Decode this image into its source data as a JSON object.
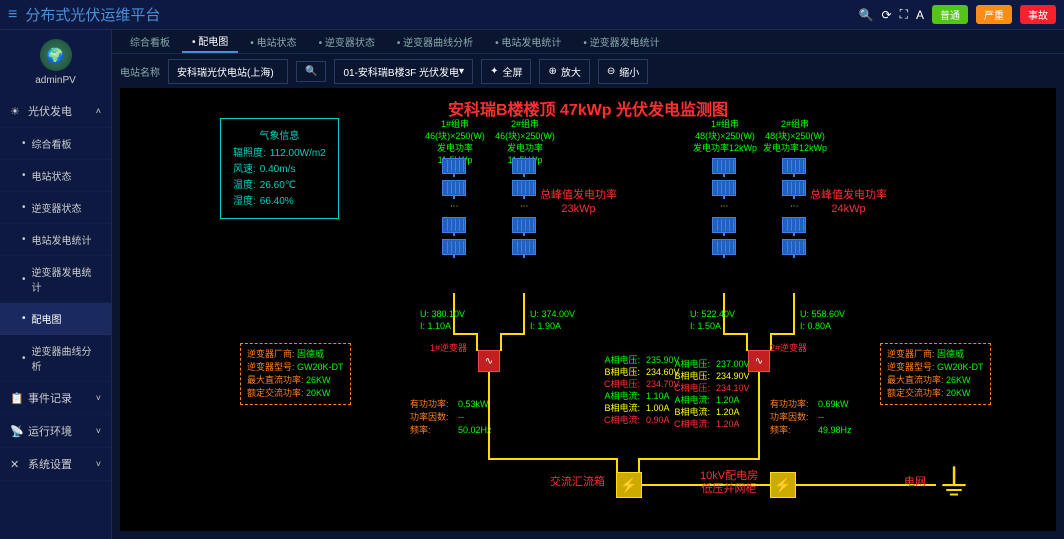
{
  "app": {
    "title": "分布式光伏运维平台",
    "user": "adminPV"
  },
  "topButtons": {
    "b1": "普通",
    "b2": "严重",
    "b3": "事故"
  },
  "sidebar": {
    "items": [
      {
        "icon": "☀",
        "label": "光伏发电",
        "arrow": "˄"
      },
      {
        "label": "综合看板"
      },
      {
        "label": "电站状态"
      },
      {
        "label": "逆变器状态"
      },
      {
        "label": "电站发电统计"
      },
      {
        "label": "逆变器发电统计"
      },
      {
        "label": "配电图"
      },
      {
        "label": "逆变器曲线分析"
      },
      {
        "icon": "📋",
        "label": "事件记录",
        "arrow": "˅"
      },
      {
        "icon": "📡",
        "label": "运行环境",
        "arrow": "˅"
      },
      {
        "icon": "✕",
        "label": "系统设置",
        "arrow": "˅"
      }
    ]
  },
  "tabs": [
    "综合看板",
    "配电图",
    "电站状态",
    "逆变器状态",
    "逆变器曲线分析",
    "电站发电统计",
    "逆变器发电统计"
  ],
  "toolbar": {
    "stationLabel": "电站名称",
    "station": "安科瑞光伏电站(上海)",
    "tree": "01-安科瑞B楼3F 光伏发电",
    "full": "全屏",
    "zoomIn": "放大",
    "zoomOut": "缩小"
  },
  "diagram": {
    "title": "安科瑞B楼楼顶 47kWp 光伏发电监测图",
    "weather": {
      "title": "气象信息",
      "rows": [
        [
          "辐照度:",
          "112.00W/m2"
        ],
        [
          "风速:",
          "0.40m/s"
        ],
        [
          "温度:",
          "26.60℃"
        ],
        [
          "湿度:",
          "66.40%"
        ]
      ]
    },
    "groups": [
      {
        "name": "1#组串",
        "spec": "46(块)×250(W)",
        "power": "发电功率11.5kWp"
      },
      {
        "name": "2#组串",
        "spec": "46(块)×250(W)",
        "power": "发电功率11.5kWp"
      },
      {
        "name": "1#组串",
        "spec": "48(块)×250(W)",
        "power": "发电功率12kWp"
      },
      {
        "name": "2#组串",
        "spec": "48(块)×250(W)",
        "power": "发电功率12kWp"
      }
    ],
    "peak1": {
      "l1": "总峰值发电功率",
      "l2": "23kWp"
    },
    "peak2": {
      "l1": "总峰值发电功率",
      "l2": "24kWp"
    },
    "ui": [
      {
        "u": "U: 380.10V",
        "i": "I: 1.10A"
      },
      {
        "u": "U: 374.00V",
        "i": "I: 1.90A"
      },
      {
        "u": "U: 522.40V",
        "i": "I: 1.50A"
      },
      {
        "u": "U: 558.60V",
        "i": "I: 0.80A"
      }
    ],
    "invTag1": "1#逆变器",
    "invTag2": "2#逆变器",
    "invBox": {
      "r1l": "逆变器厂商:",
      "r1v": "固德威",
      "r2l": "逆变器型号:",
      "r2v": "GW20K-DT",
      "r3l": "最大直流功率:",
      "r3v": "26KW",
      "r4l": "额定交流功率:",
      "r4v": "20KW"
    },
    "phase1": [
      [
        "A相电压:",
        "235.90V",
        "green"
      ],
      [
        "B相电压:",
        "234.60V",
        "yellow"
      ],
      [
        "C相电压:",
        "234.70V",
        "red"
      ],
      [
        "A相电流:",
        "1.10A",
        "green"
      ],
      [
        "B相电流:",
        "1.00A",
        "yellow"
      ],
      [
        "C相电流:",
        "0.90A",
        "red"
      ]
    ],
    "phase2": [
      [
        "A相电压:",
        "237.00V",
        "green"
      ],
      [
        "B相电压:",
        "234.90V",
        "yellow"
      ],
      [
        "C相电压:",
        "234.10V",
        "red"
      ],
      [
        "A相电流:",
        "1.20A",
        "green"
      ],
      [
        "B相电流:",
        "1.20A",
        "yellow"
      ],
      [
        "C相电流:",
        "1.20A",
        "red"
      ]
    ],
    "power1": [
      [
        "有功功率:",
        "0.53kW"
      ],
      [
        "功率因数:",
        "--"
      ],
      [
        "频率:",
        "50.02Hz"
      ]
    ],
    "power2": [
      [
        "有功功率:",
        "0.69kW"
      ],
      [
        "功率因数:",
        "--"
      ],
      [
        "频率:",
        "49.98Hz"
      ]
    ],
    "bottom": {
      "conflux": "交流汇流箱",
      "cabinet1": "10kV配电房",
      "cabinet2": "低压并网柜",
      "grid": "电网"
    }
  }
}
